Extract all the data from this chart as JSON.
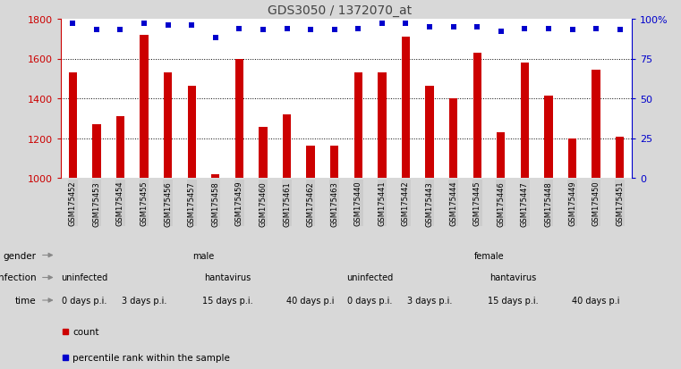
{
  "title": "GDS3050 / 1372070_at",
  "samples": [
    "GSM175452",
    "GSM175453",
    "GSM175454",
    "GSM175455",
    "GSM175456",
    "GSM175457",
    "GSM175458",
    "GSM175459",
    "GSM175460",
    "GSM175461",
    "GSM175462",
    "GSM175463",
    "GSM175440",
    "GSM175441",
    "GSM175442",
    "GSM175443",
    "GSM175444",
    "GSM175445",
    "GSM175446",
    "GSM175447",
    "GSM175448",
    "GSM175449",
    "GSM175450",
    "GSM175451"
  ],
  "counts": [
    1530,
    1270,
    1310,
    1720,
    1530,
    1465,
    1020,
    1600,
    1255,
    1320,
    1160,
    1160,
    1530,
    1530,
    1710,
    1465,
    1400,
    1630,
    1230,
    1580,
    1415,
    1200,
    1545,
    1205
  ],
  "percentiles": [
    97,
    93,
    93,
    97,
    96,
    96,
    88,
    94,
    93,
    94,
    93,
    93,
    94,
    97,
    97,
    95,
    95,
    95,
    92,
    94,
    94,
    93,
    94,
    93
  ],
  "ylim_left": [
    1000,
    1800
  ],
  "ylim_right": [
    0,
    100
  ],
  "yticks_left": [
    1000,
    1200,
    1400,
    1600,
    1800
  ],
  "yticks_right": [
    0,
    25,
    50,
    75,
    100
  ],
  "ytick_right_labels": [
    "0",
    "25",
    "50",
    "75",
    "100%"
  ],
  "bar_color": "#cc0000",
  "dot_color": "#0000cc",
  "bg_color": "#d8d8d8",
  "plot_bg": "#ffffff",
  "tick_bg": "#cccccc",
  "male_color": "#aaffaa",
  "female_color": "#55cc55",
  "uninfected_color": "#aaaadd",
  "hantavirus_color": "#7777bb",
  "time_colors": [
    "#ffdddd",
    "#ffbbbb",
    "#ee9999",
    "#cc7777"
  ],
  "n_samples": 24,
  "gender_segments": [
    {
      "label": "male",
      "start": 0,
      "end": 12,
      "color_key": "male_color"
    },
    {
      "label": "female",
      "start": 12,
      "end": 24,
      "color_key": "female_color"
    }
  ],
  "infection_segments": [
    {
      "label": "uninfected",
      "start": 0,
      "end": 2,
      "color_key": "uninfected_color"
    },
    {
      "label": "hantavirus",
      "start": 2,
      "end": 12,
      "color_key": "hantavirus_color"
    },
    {
      "label": "uninfected",
      "start": 12,
      "end": 14,
      "color_key": "uninfected_color"
    },
    {
      "label": "hantavirus",
      "start": 14,
      "end": 24,
      "color_key": "hantavirus_color"
    }
  ],
  "time_segments": [
    {
      "label": "0 days p.i.",
      "start": 0,
      "end": 2,
      "tidx": 0
    },
    {
      "label": "3 days p.i.",
      "start": 2,
      "end": 5,
      "tidx": 1
    },
    {
      "label": "15 days p.i.",
      "start": 5,
      "end": 9,
      "tidx": 2
    },
    {
      "label": "40 days p.i",
      "start": 9,
      "end": 12,
      "tidx": 3
    },
    {
      "label": "0 days p.i.",
      "start": 12,
      "end": 14,
      "tidx": 0
    },
    {
      "label": "3 days p.i.",
      "start": 14,
      "end": 17,
      "tidx": 1
    },
    {
      "label": "15 days p.i.",
      "start": 17,
      "end": 21,
      "tidx": 2
    },
    {
      "label": "40 days p.i",
      "start": 21,
      "end": 24,
      "tidx": 3
    }
  ],
  "row_labels": [
    "gender",
    "infection",
    "time"
  ]
}
